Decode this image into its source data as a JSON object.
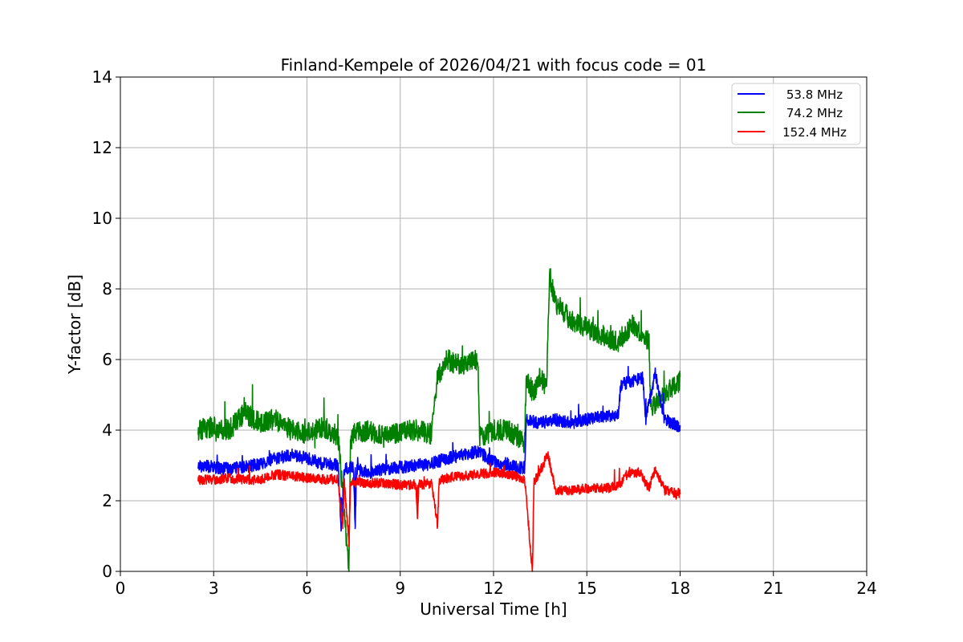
{
  "chart_data": {
    "type": "line",
    "title": "Finland-Kempele of 2026/04/21 with focus code = 01",
    "xlabel": "Universal Time [h]",
    "ylabel": "Y-factor [dB]",
    "xlim": [
      0,
      24
    ],
    "ylim": [
      0,
      14
    ],
    "xticks": [
      "0",
      "3",
      "6",
      "9",
      "12",
      "15",
      "18",
      "21",
      "24"
    ],
    "yticks": [
      "0",
      "2",
      "4",
      "6",
      "8",
      "10",
      "12",
      "14"
    ],
    "grid": true,
    "legend_position": "top-right",
    "series": [
      {
        "name": "53.8 MHz",
        "color": "#0000ff",
        "points": [
          [
            2.5,
            3.0
          ],
          [
            3.0,
            2.95
          ],
          [
            3.5,
            2.9
          ],
          [
            4.0,
            2.95
          ],
          [
            4.5,
            3.05
          ],
          [
            5.0,
            3.2
          ],
          [
            5.5,
            3.3
          ],
          [
            6.0,
            3.2
          ],
          [
            6.5,
            3.05
          ],
          [
            7.0,
            3.0
          ],
          [
            7.1,
            1.2
          ],
          [
            7.2,
            2.9
          ],
          [
            7.5,
            2.95
          ],
          [
            7.55,
            1.2
          ],
          [
            7.6,
            2.9
          ],
          [
            8.0,
            2.8
          ],
          [
            8.5,
            2.9
          ],
          [
            9.0,
            2.95
          ],
          [
            9.5,
            3.0
          ],
          [
            10.0,
            3.05
          ],
          [
            10.5,
            3.2
          ],
          [
            11.0,
            3.3
          ],
          [
            11.5,
            3.4
          ],
          [
            12.0,
            3.1
          ],
          [
            12.5,
            3.0
          ],
          [
            13.0,
            2.9
          ],
          [
            13.05,
            4.3
          ],
          [
            13.5,
            4.2
          ],
          [
            14.0,
            4.3
          ],
          [
            14.5,
            4.2
          ],
          [
            15.0,
            4.3
          ],
          [
            15.5,
            4.4
          ],
          [
            16.0,
            4.4
          ],
          [
            16.1,
            5.3
          ],
          [
            16.5,
            5.4
          ],
          [
            16.8,
            5.5
          ],
          [
            16.9,
            4.3
          ],
          [
            17.2,
            5.6
          ],
          [
            17.5,
            4.3
          ],
          [
            18.0,
            4.1
          ]
        ]
      },
      {
        "name": "74.2 MHz",
        "color": "#008000",
        "points": [
          [
            2.5,
            4.0
          ],
          [
            3.0,
            4.1
          ],
          [
            3.5,
            4.0
          ],
          [
            4.0,
            4.5
          ],
          [
            4.5,
            4.2
          ],
          [
            5.0,
            4.3
          ],
          [
            5.5,
            4.0
          ],
          [
            6.0,
            3.9
          ],
          [
            6.5,
            4.1
          ],
          [
            7.0,
            3.85
          ],
          [
            7.35,
            0.0
          ],
          [
            7.4,
            3.7
          ],
          [
            7.5,
            3.9
          ],
          [
            8.0,
            4.0
          ],
          [
            8.5,
            3.8
          ],
          [
            9.0,
            3.95
          ],
          [
            9.5,
            4.0
          ],
          [
            10.0,
            3.9
          ],
          [
            10.2,
            5.5
          ],
          [
            10.5,
            6.0
          ],
          [
            11.0,
            5.8
          ],
          [
            11.5,
            6.0
          ],
          [
            11.55,
            3.8
          ],
          [
            12.0,
            4.0
          ],
          [
            12.5,
            4.0
          ],
          [
            13.0,
            3.6
          ],
          [
            13.05,
            5.5
          ],
          [
            13.3,
            5.0
          ],
          [
            13.5,
            5.5
          ],
          [
            13.7,
            5.2
          ],
          [
            13.8,
            8.4
          ],
          [
            14.0,
            7.6
          ],
          [
            14.5,
            7.1
          ],
          [
            15.0,
            6.9
          ],
          [
            15.5,
            6.7
          ],
          [
            16.0,
            6.5
          ],
          [
            16.5,
            7.0
          ],
          [
            17.0,
            6.5
          ],
          [
            17.05,
            4.6
          ],
          [
            17.5,
            5.0
          ],
          [
            18.0,
            5.4
          ]
        ]
      },
      {
        "name": "152.4 MHz",
        "color": "#ff0000",
        "points": [
          [
            2.5,
            2.6
          ],
          [
            3.0,
            2.6
          ],
          [
            3.5,
            2.65
          ],
          [
            4.0,
            2.6
          ],
          [
            4.5,
            2.6
          ],
          [
            5.0,
            2.75
          ],
          [
            5.5,
            2.7
          ],
          [
            6.0,
            2.65
          ],
          [
            6.5,
            2.6
          ],
          [
            7.0,
            2.6
          ],
          [
            7.15,
            1.2
          ],
          [
            7.2,
            2.55
          ],
          [
            7.35,
            0.7
          ],
          [
            7.4,
            2.55
          ],
          [
            8.0,
            2.5
          ],
          [
            8.5,
            2.5
          ],
          [
            9.0,
            2.45
          ],
          [
            9.5,
            2.45
          ],
          [
            9.55,
            1.5
          ],
          [
            9.6,
            2.45
          ],
          [
            10.0,
            2.5
          ],
          [
            10.2,
            1.3
          ],
          [
            10.25,
            2.6
          ],
          [
            11.0,
            2.7
          ],
          [
            11.5,
            2.75
          ],
          [
            12.0,
            2.8
          ],
          [
            12.5,
            2.75
          ],
          [
            13.0,
            2.6
          ],
          [
            13.25,
            0.0
          ],
          [
            13.3,
            2.5
          ],
          [
            13.75,
            3.3
          ],
          [
            14.0,
            2.3
          ],
          [
            14.5,
            2.3
          ],
          [
            15.0,
            2.35
          ],
          [
            15.5,
            2.35
          ],
          [
            16.0,
            2.4
          ],
          [
            16.3,
            2.8
          ],
          [
            16.7,
            2.8
          ],
          [
            17.0,
            2.35
          ],
          [
            17.2,
            2.9
          ],
          [
            17.5,
            2.3
          ],
          [
            18.0,
            2.2
          ]
        ]
      }
    ]
  }
}
